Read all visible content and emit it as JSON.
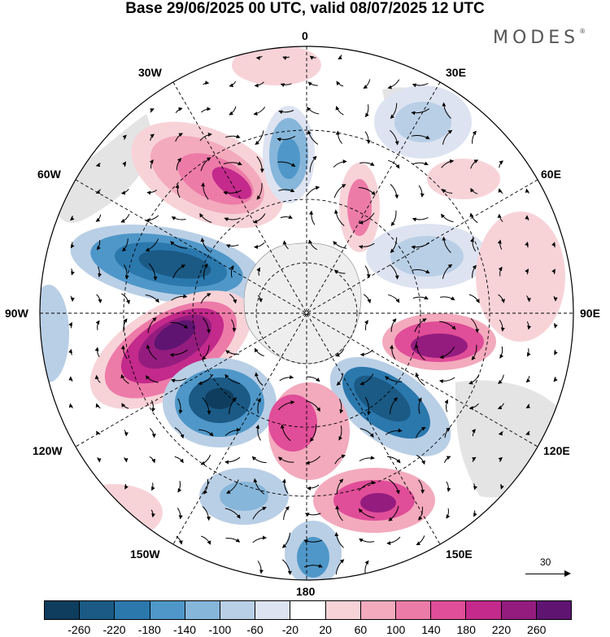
{
  "title": "Base 29/06/2025 00 UTC, valid 08/07/2025 12 UTC",
  "brand": "MODES",
  "brand_mark": "®",
  "meridian_labels": {
    "m0": "0",
    "m30e": "30E",
    "m60e": "60E",
    "m90e": "90E",
    "m120e": "120E",
    "m150e": "150E",
    "m180": "180",
    "m150w": "150W",
    "m120w": "120W",
    "m90w": "90W",
    "m60w": "60W",
    "m30w": "30W"
  },
  "reference_vector": {
    "label": "30"
  },
  "colorbar": {
    "ticks": [
      "-260",
      "-220",
      "-180",
      "-140",
      "-100",
      "-60",
      "-20",
      "20",
      "60",
      "100",
      "140",
      "180",
      "220",
      "260"
    ],
    "colors": [
      "#0f3d5e",
      "#1a5a85",
      "#2b78ad",
      "#4f97c8",
      "#86b6da",
      "#b9cfe6",
      "#dde3f1",
      "#ffffff",
      "#f7d3d8",
      "#f3aabd",
      "#ed7ba8",
      "#e04d98",
      "#c32a8b",
      "#941c7f",
      "#5f1472"
    ]
  },
  "icons": {
    "vector_arrow": "arrow-icon"
  }
}
